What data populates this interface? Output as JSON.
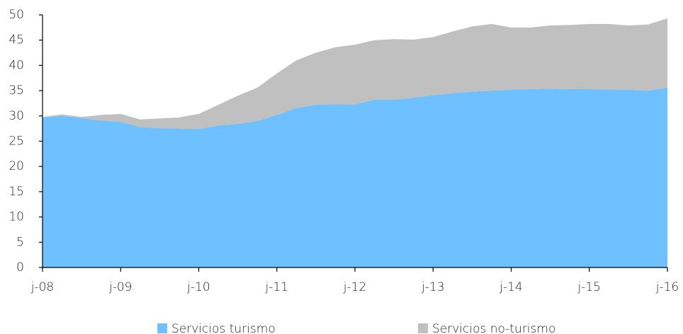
{
  "chart_data": {
    "type": "stacked_area",
    "categories": [
      "j-08",
      null,
      null,
      null,
      "j-09",
      null,
      null,
      null,
      "j-10",
      null,
      null,
      null,
      "j-11",
      null,
      null,
      null,
      "j-12",
      null,
      null,
      null,
      "j-13",
      null,
      null,
      null,
      "j-14",
      null,
      null,
      null,
      "j-15",
      null,
      null,
      null,
      "j-16"
    ],
    "series": [
      {
        "name": "Servicios turismo",
        "color": "#6fc0ff",
        "values": [
          29.7,
          30.0,
          29.6,
          29.1,
          28.8,
          27.8,
          27.6,
          27.5,
          27.4,
          28.1,
          28.4,
          29.0,
          30.2,
          31.6,
          32.2,
          32.3,
          32.3,
          33.2,
          33.2,
          33.6,
          34.1,
          34.5,
          34.8,
          35.0,
          35.2,
          35.3,
          35.4,
          35.3,
          35.3,
          35.2,
          35.2,
          35.0,
          35.6
        ]
      },
      {
        "name": "Servicios no-turismo",
        "color": "#c0c0c0",
        "values": [
          0.1,
          0.3,
          0.2,
          1.1,
          1.6,
          1.5,
          1.9,
          2.2,
          3.0,
          4.1,
          5.6,
          6.6,
          8.2,
          9.4,
          10.3,
          11.3,
          11.8,
          11.8,
          12.0,
          11.5,
          11.5,
          12.2,
          12.9,
          13.2,
          12.3,
          12.2,
          12.5,
          12.7,
          12.9,
          13.0,
          12.7,
          13.1,
          13.7
        ]
      }
    ],
    "ylim": [
      0,
      50
    ],
    "yticks": [
      0,
      5,
      10,
      15,
      20,
      25,
      30,
      35,
      40,
      45,
      50
    ],
    "grid": false
  }
}
